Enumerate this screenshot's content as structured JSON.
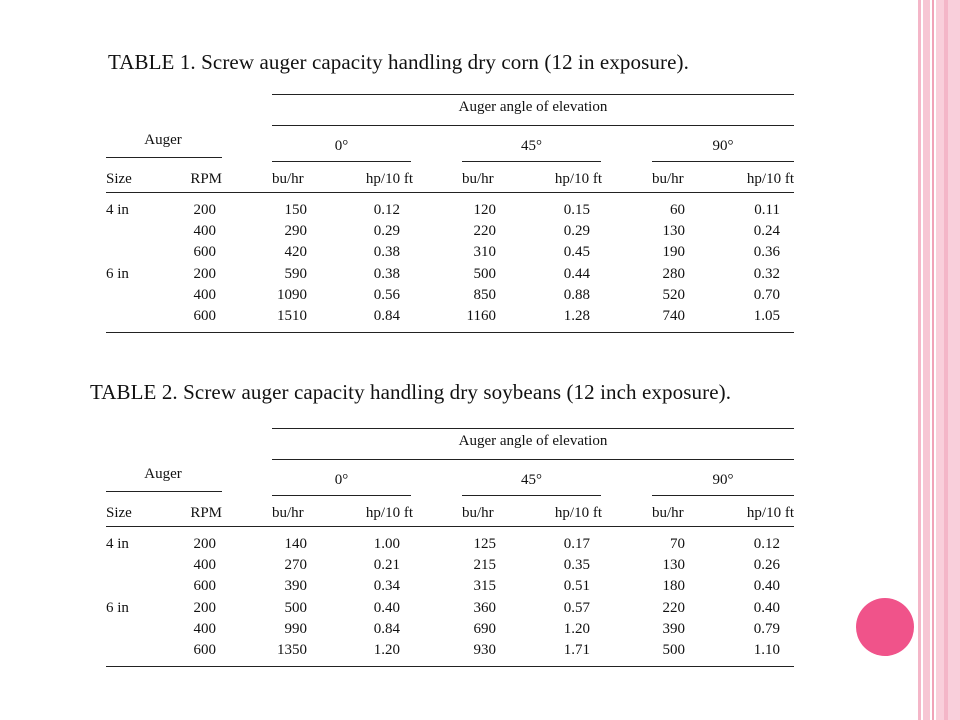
{
  "tables": [
    {
      "caption": "TABLE 1. Screw auger capacity handling dry corn (12 in exposure).",
      "header": {
        "group_label": "Auger angle of elevation",
        "auger_label": "Auger",
        "angles": [
          "0°",
          "45°",
          "90°"
        ],
        "columns": [
          "Size",
          "RPM",
          "bu/hr",
          "hp/10 ft",
          "bu/hr",
          "hp/10 ft",
          "bu/hr",
          "hp/10 ft"
        ]
      },
      "rows": [
        [
          "4 in",
          "200",
          "150",
          "0.12",
          "120",
          "0.15",
          "60",
          "0.11"
        ],
        [
          "",
          "400",
          "290",
          "0.29",
          "220",
          "0.29",
          "130",
          "0.24"
        ],
        [
          "",
          "600",
          "420",
          "0.38",
          "310",
          "0.45",
          "190",
          "0.36"
        ],
        [
          "6 in",
          "200",
          "590",
          "0.38",
          "500",
          "0.44",
          "280",
          "0.32"
        ],
        [
          "",
          "400",
          "1090",
          "0.56",
          "850",
          "0.88",
          "520",
          "0.70"
        ],
        [
          "",
          "600",
          "1510",
          "0.84",
          "1160",
          "1.28",
          "740",
          "1.05"
        ]
      ]
    },
    {
      "caption": "TABLE 2. Screw auger capacity handling dry soybeans (12 inch exposure).",
      "header": {
        "group_label": "Auger angle of elevation",
        "auger_label": "Auger",
        "angles": [
          "0°",
          "45°",
          "90°"
        ],
        "columns": [
          "Size",
          "RPM",
          "bu/hr",
          "hp/10 ft",
          "bu/hr",
          "hp/10 ft",
          "bu/hr",
          "hp/10 ft"
        ]
      },
      "rows": [
        [
          "4 in",
          "200",
          "140",
          "1.00",
          "125",
          "0.17",
          "70",
          "0.12"
        ],
        [
          "",
          "400",
          "270",
          "0.21",
          "215",
          "0.35",
          "130",
          "0.26"
        ],
        [
          "",
          "600",
          "390",
          "0.34",
          "315",
          "0.51",
          "180",
          "0.40"
        ],
        [
          "6 in",
          "200",
          "500",
          "0.40",
          "360",
          "0.57",
          "220",
          "0.40"
        ],
        [
          "",
          "400",
          "990",
          "0.84",
          "690",
          "1.20",
          "390",
          "0.79"
        ],
        [
          "",
          "600",
          "1350",
          "1.20",
          "930",
          "1.71",
          "500",
          "1.10"
        ]
      ]
    }
  ],
  "theme": {
    "accent": "#f0538a",
    "stripe": "#f7c6d4"
  }
}
